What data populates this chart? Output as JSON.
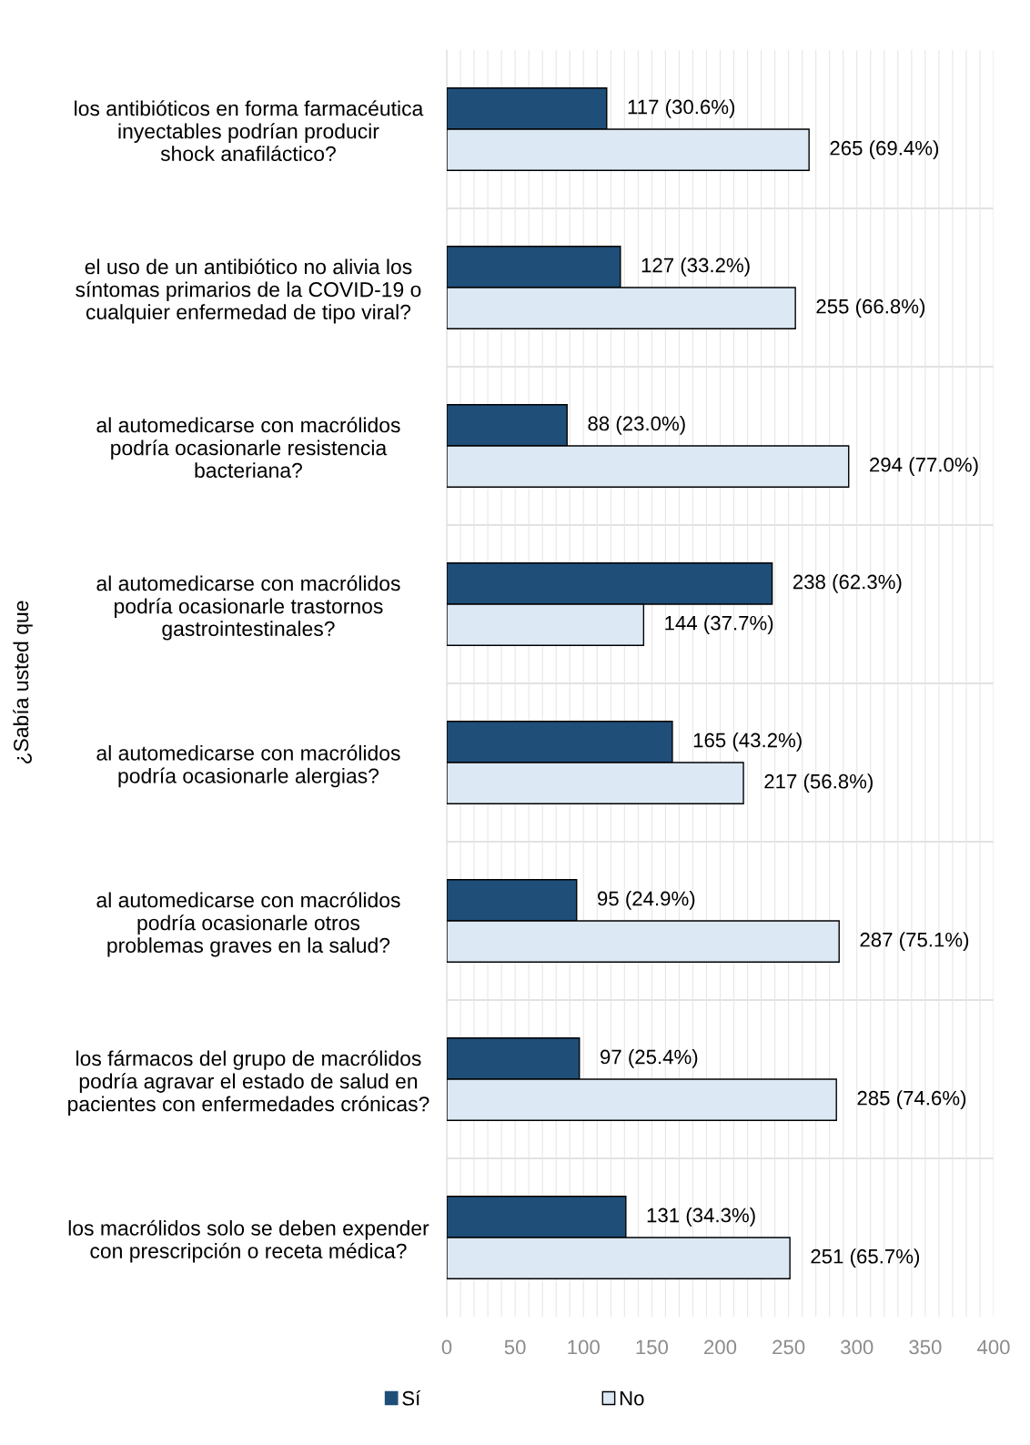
{
  "chart_data": {
    "type": "bar",
    "orientation": "horizontal",
    "ylabel": "¿Sabía usted que",
    "categories": [
      "los antibióticos en forma farmacéutica\ninyectables podrían producir\nshock anafiláctico?",
      "el uso de un antibiótico no alivia los\nsíntomas primarios de la COVID-19 o\ncualquier enfermedad de tipo viral?",
      "al automedicarse con macrólidos\npodría ocasionarle resistencia\nbacteriana?",
      "al automedicarse con macrólidos\npodría ocasionarle trastornos\ngastrointestinales?",
      "al automedicarse con macrólidos\npodría ocasionarle alergias?",
      "al automedicarse con macrólidos\npodría ocasionarle otros\nproblemas graves en la salud?",
      "los fármacos del grupo de macrólidos\npodría agravar el estado de salud en\npacientes con enfermedades crónicas?",
      "los macrólidos solo se deben expender\ncon prescripción o receta médica?"
    ],
    "series": [
      {
        "name": "Sí",
        "color": "#1f4e79",
        "values": [
          117,
          127,
          88,
          238,
          165,
          95,
          97,
          131
        ],
        "value_labels": [
          "117 (30.6%)",
          "127 (33.2%)",
          "88 (23.0%)",
          "238 (62.3%)",
          "165 (43.2%)",
          "95 (24.9%)",
          "97 (25.4%)",
          "131 (34.3%)"
        ]
      },
      {
        "name": "No",
        "color": "#dce9f5",
        "values": [
          265,
          255,
          294,
          144,
          217,
          287,
          285,
          251
        ],
        "value_labels": [
          "265 (69.4%)",
          "255 (66.8%)",
          "294 (77.0%)",
          "144 (37.7%)",
          "217 (56.8%)",
          "287 (75.1%)",
          "285 (74.6%)",
          "251 (65.7%)"
        ]
      }
    ],
    "xlim": [
      0,
      400
    ],
    "xticks": [
      0,
      {
        "value": 10,
        "label": null
      },
      {
        "value": 20,
        "label": null
      },
      {
        "value": 30,
        "label": null
      },
      {
        "value": 40,
        "label": null
      },
      50,
      {
        "value": 60,
        "label": null
      },
      {
        "value": 70,
        "label": null
      },
      {
        "value": 80,
        "label": null
      },
      {
        "value": 90,
        "label": null
      },
      100,
      {
        "value": 110,
        "label": null
      },
      {
        "value": 120,
        "label": null
      },
      {
        "value": 130,
        "label": null
      },
      {
        "value": 140,
        "label": null
      },
      150,
      {
        "value": 160,
        "label": null
      },
      {
        "value": 170,
        "label": null
      },
      {
        "value": 180,
        "label": null
      },
      {
        "value": 190,
        "label": null
      },
      200,
      {
        "value": 210,
        "label": null
      },
      {
        "value": 220,
        "label": null
      },
      {
        "value": 230,
        "label": null
      },
      {
        "value": 240,
        "label": null
      },
      250,
      {
        "value": 260,
        "label": null
      },
      {
        "value": 270,
        "label": null
      },
      {
        "value": 280,
        "label": null
      },
      {
        "value": 290,
        "label": null
      },
      300,
      {
        "value": 310,
        "label": null
      },
      {
        "value": 320,
        "label": null
      },
      {
        "value": 330,
        "label": null
      },
      {
        "value": 340,
        "label": null
      },
      350,
      {
        "value": 360,
        "label": null
      },
      {
        "value": 370,
        "label": null
      },
      {
        "value": 380,
        "label": null
      },
      {
        "value": 390,
        "label": null
      },
      400
    ],
    "grid": "x",
    "legend": "bottom"
  }
}
